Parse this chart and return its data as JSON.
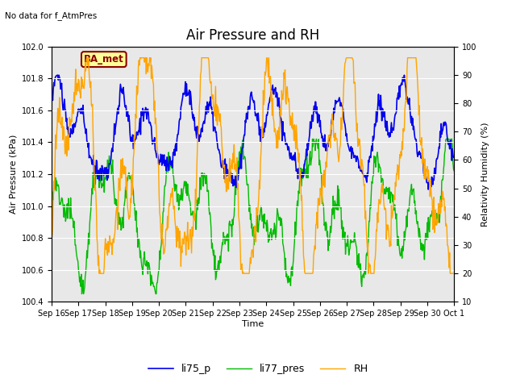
{
  "title": "Air Pressure and RH",
  "subtitle": "No data for f_AtmPres",
  "xlabel": "Time",
  "ylabel_left": "Air Pressure (kPa)",
  "ylabel_right": "Relativity Humidity (%)",
  "ylim_left": [
    100.4,
    102.0
  ],
  "ylim_right": [
    10,
    100
  ],
  "yticks_left": [
    100.4,
    100.6,
    100.8,
    101.0,
    101.2,
    101.4,
    101.6,
    101.8,
    102.0
  ],
  "yticks_right": [
    10,
    20,
    30,
    40,
    50,
    60,
    70,
    80,
    90,
    100
  ],
  "xtick_labels": [
    "Sep 16",
    "Sep 17",
    "Sep 18",
    "Sep 19",
    "Sep 20",
    "Sep 21",
    "Sep 22",
    "Sep 23",
    "Sep 24",
    "Sep 25",
    "Sep 26",
    "Sep 27",
    "Sep 28",
    "Sep 29",
    "Sep 30",
    "Oct 1"
  ],
  "color_li75": "#0000EE",
  "color_li77": "#00BB00",
  "color_rh": "#FFA500",
  "color_bg": "#E8E8E8",
  "label_li75": "li75_p",
  "label_li77": "li77_pres",
  "label_rh": "RH",
  "box_label": "BA_met",
  "box_facecolor": "#FFFF99",
  "box_edgecolor": "#8B0000",
  "legend_fontsize": 9,
  "title_fontsize": 12,
  "axes_fontsize": 8,
  "tick_fontsize": 7
}
